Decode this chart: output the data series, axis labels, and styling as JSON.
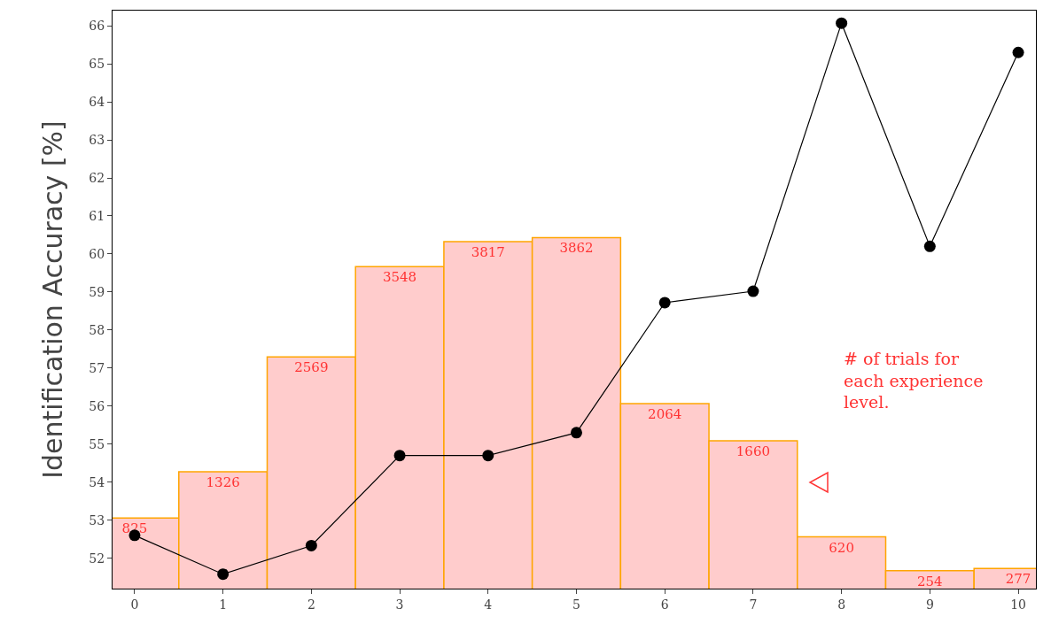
{
  "chart_data": {
    "type": "line",
    "ylabel": "Identification Accuracy [%]",
    "categories": [
      "0",
      "1",
      "2",
      "3",
      "4",
      "5",
      "6",
      "7",
      "8",
      "9",
      "10"
    ],
    "series": [
      {
        "type": "bar",
        "axis": "y2",
        "color": "#ffcccc",
        "values": [
          825,
          1326,
          2569,
          3548,
          3817,
          3862,
          2064,
          1660,
          620,
          254,
          277
        ],
        "value_labels": [
          "825",
          "1326",
          "2569",
          "3548",
          "3817",
          "3862",
          "2064",
          "1660",
          "620",
          "254",
          "277"
        ]
      },
      {
        "color": "#000000",
        "values": [
          52.6,
          51.58,
          52.33,
          54.7,
          54.7,
          55.3,
          58.72,
          59.02,
          66.07,
          60.2,
          65.3
        ]
      }
    ],
    "ylim": [
      51.2,
      66.4
    ],
    "yticks": [
      52,
      53,
      54,
      55,
      56,
      57,
      58,
      59,
      60,
      61,
      62,
      63,
      64,
      65,
      66
    ],
    "y2lim": [
      60,
      6320
    ],
    "marker": "circle",
    "line_style": "solid",
    "annotations": [
      "# of trials for each experience level."
    ]
  }
}
